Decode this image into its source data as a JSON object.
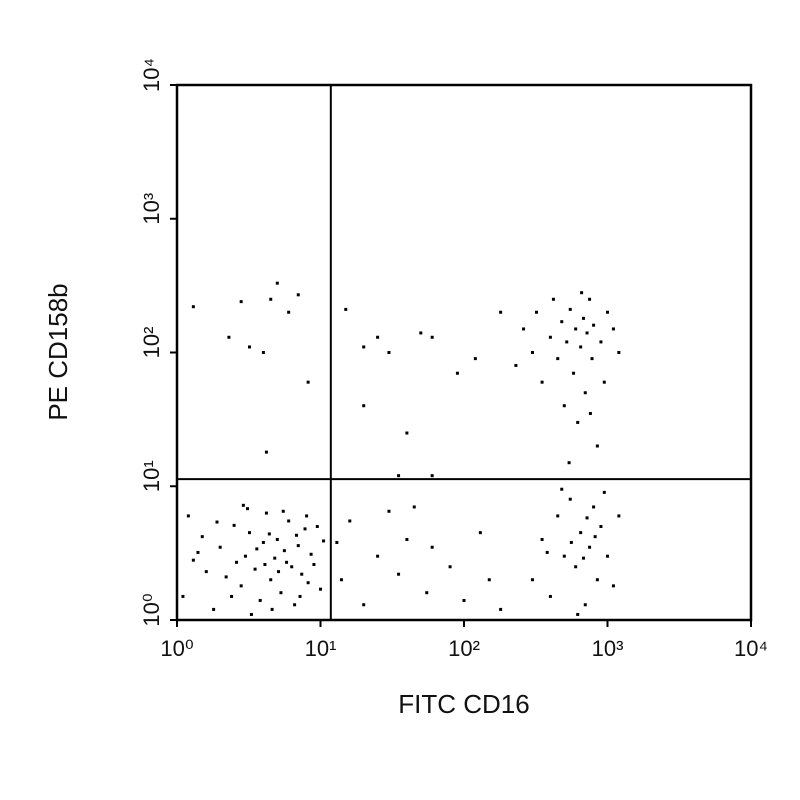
{
  "chart_data": {
    "type": "scatter",
    "xlabel": "FITC CD16",
    "ylabel": "PE CD158b",
    "xscale": "log",
    "yscale": "log",
    "xlim": [
      1,
      10000
    ],
    "ylim": [
      1,
      10000
    ],
    "xticks": [
      {
        "value": 1,
        "label": "10⁰"
      },
      {
        "value": 10,
        "label": "10¹"
      },
      {
        "value": 100,
        "label": "10²"
      },
      {
        "value": 1000,
        "label": "10³"
      },
      {
        "value": 10000,
        "label": "10⁴"
      }
    ],
    "yticks": [
      {
        "value": 1,
        "label": "10⁰"
      },
      {
        "value": 10,
        "label": "10¹"
      },
      {
        "value": 100,
        "label": "10²"
      },
      {
        "value": 1000,
        "label": "10³"
      },
      {
        "value": 10000,
        "label": "10⁴"
      }
    ],
    "quadrant_lines": {
      "x": 11.8,
      "y": 11.3
    },
    "color": "#000000",
    "x": [
      1.1,
      1.3,
      1.5,
      1.2,
      1.8,
      2.0,
      2.2,
      2.5,
      2.8,
      3.0,
      3.2,
      3.5,
      3.8,
      4.0,
      4.2,
      4.5,
      4.8,
      5.0,
      5.3,
      5.6,
      6.0,
      6.3,
      6.6,
      7.0,
      7.4,
      7.8,
      8.2,
      8.6,
      9.0,
      9.5,
      10,
      10.5,
      1.4,
      1.6,
      2.4,
      2.6,
      3.3,
      3.6,
      4.4,
      4.6,
      5.1,
      5.8,
      6.8,
      7.2,
      3.1,
      5.5,
      2.9,
      1.9,
      8.0,
      4.1,
      14,
      16,
      20,
      25,
      30,
      35,
      40,
      55,
      60,
      80,
      100,
      130,
      150,
      180,
      45,
      13,
      300,
      350,
      400,
      450,
      500,
      550,
      600,
      650,
      700,
      750,
      800,
      850,
      900,
      1000,
      1100,
      480,
      620,
      720,
      560,
      680,
      380,
      820,
      950,
      1200,
      260,
      300,
      320,
      350,
      400,
      420,
      450,
      480,
      500,
      520,
      550,
      580,
      600,
      620,
      650,
      680,
      700,
      720,
      750,
      780,
      800,
      850,
      900,
      950,
      1000,
      1100,
      1200,
      540,
      660,
      760,
      180,
      230,
      120,
      1.3,
      2.3,
      2.8,
      3.2,
      4.0,
      4.5,
      5.0,
      6.0,
      7.0,
      8.2,
      4.2,
      15,
      20,
      25,
      30,
      50,
      60,
      90,
      20,
      40,
      35,
      60
    ],
    "y": [
      1.5,
      2.8,
      4.2,
      6.0,
      1.2,
      3.5,
      2.1,
      5.1,
      1.8,
      3.0,
      4.5,
      2.4,
      1.4,
      3.8,
      6.3,
      2.0,
      2.9,
      4.0,
      1.6,
      3.3,
      5.5,
      2.5,
      1.3,
      3.6,
      2.2,
      4.8,
      1.9,
      3.1,
      2.6,
      5.0,
      1.7,
      3.9,
      3.2,
      2.3,
      1.5,
      2.7,
      1.1,
      3.4,
      4.4,
      1.2,
      2.3,
      2.7,
      4.3,
      1.5,
      6.8,
      6.5,
      7.2,
      5.4,
      6.0,
      2.6,
      2.0,
      5.5,
      1.3,
      3.0,
      6.5,
      2.2,
      4.0,
      1.6,
      3.5,
      2.5,
      1.4,
      4.5,
      2.0,
      1.2,
      7.0,
      3.8,
      2.0,
      4.0,
      1.5,
      6.0,
      3.0,
      8.0,
      2.5,
      4.5,
      1.3,
      3.5,
      7.0,
      2.0,
      5.0,
      3.0,
      1.8,
      9.5,
      1.1,
      5.8,
      3.8,
      2.9,
      3.2,
      4.2,
      9.0,
      6.0,
      150,
      100,
      200,
      60,
      130,
      250,
      90,
      170,
      40,
      120,
      210,
      70,
      150,
      30,
      110,
      180,
      50,
      140,
      250,
      90,
      160,
      20,
      120,
      60,
      200,
      150,
      100,
      15,
      280,
      35,
      200,
      80,
      90,
      220,
      130,
      240,
      110,
      100,
      250,
      330,
      200,
      270,
      60,
      18,
      210,
      110,
      130,
      100,
      140,
      130,
      70,
      40,
      25,
      12,
      12
    ]
  }
}
